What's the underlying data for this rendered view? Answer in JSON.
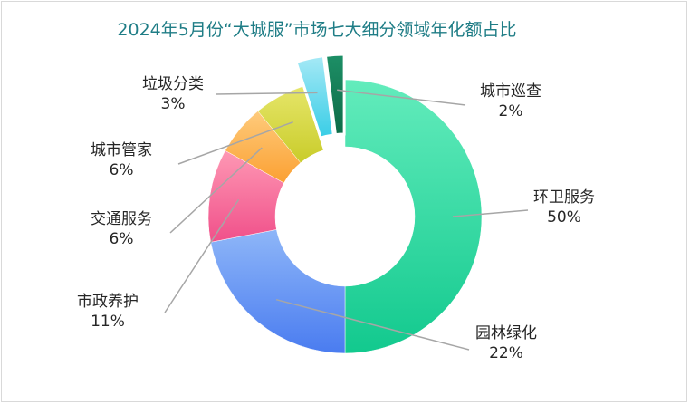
{
  "chart_data": {
    "type": "pie",
    "title": "2024年5月份“大城服”市场七大细分领域年化额占比",
    "series": [
      {
        "label": "环卫服务",
        "value": 50,
        "value_label": "50%",
        "color_top": "#63ecbc",
        "color_bottom": "#12c98e"
      },
      {
        "label": "园林绿化",
        "value": 22,
        "value_label": "22%",
        "color_top": "#8eb6f8",
        "color_bottom": "#4a7cf0"
      },
      {
        "label": "市政养护",
        "value": 11,
        "value_label": "11%",
        "color_top": "#fe98b4",
        "color_bottom": "#f0508a"
      },
      {
        "label": "交通服务",
        "value": 6,
        "value_label": "6%",
        "color_top": "#fecb7c",
        "color_bottom": "#fba032"
      },
      {
        "label": "城市管家",
        "value": 6,
        "value_label": "6%",
        "color_top": "#e6e66a",
        "color_bottom": "#c9cc2a"
      },
      {
        "label": "垃圾分类",
        "value": 3,
        "value_label": "3%",
        "color_top": "#a6e9f6",
        "color_bottom": "#38cde6"
      },
      {
        "label": "城市巡查",
        "value": 2,
        "value_label": "2%",
        "color_top": "#1d8f66",
        "color_bottom": "#0d6b47"
      }
    ],
    "donut": true,
    "exploded": [
      "垃圾分类",
      "城市巡查"
    ]
  }
}
